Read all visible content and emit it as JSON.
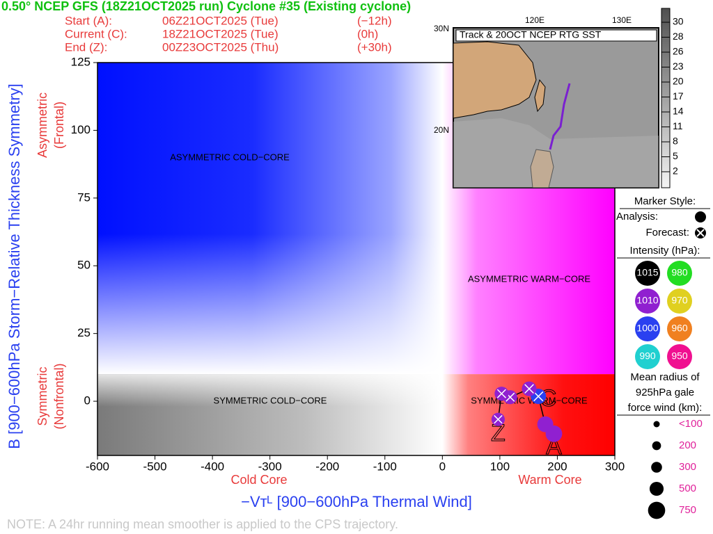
{
  "chart_data": {
    "type": "line",
    "title": "0.50° NCEP GFS (18Z21OCT2025 run) Cyclone #35 (Existing cyclone)",
    "times": [
      [
        "Start (A):",
        "06Z21OCT2025 (Tue)",
        "(−12h)"
      ],
      [
        "Current (C):",
        "18Z21OCT2025 (Tue)",
        "(0h)"
      ],
      [
        "End (Z):",
        "00Z23OCT2025 (Thu)",
        "(+30h)"
      ]
    ],
    "x_label": "−Vᴛᴸ [900−600hPa Thermal Wind]",
    "y_label": "B [900−600hPa Storm−Relative Thickness Symmetry]",
    "x_sublabels": [
      "Cold Core",
      "Warm Core"
    ],
    "y_sublabels": [
      [
        "Asymmetric",
        "(Frontal)"
      ],
      [
        "Symmetric",
        "(Nonfrontal)"
      ]
    ],
    "regions": [
      "ASYMMETRIC COLD−CORE",
      "ASYMMETRIC WARM−CORE",
      "SYMMETRIC COLD−CORE",
      "SYMMETRIC WARM−CORE"
    ],
    "region_split": {
      "x": 0,
      "y": 10
    },
    "xlim": [
      -600,
      300
    ],
    "xticks": [
      -600,
      -500,
      -400,
      -300,
      -200,
      -100,
      0,
      100,
      200,
      300
    ],
    "ylim": [
      -20,
      125
    ],
    "yticks": [
      0,
      25,
      50,
      75,
      100,
      125
    ],
    "x": [
      194,
      179,
      167,
      151,
      118,
      103,
      97
    ],
    "values": [
      -12,
      -8.5,
      1.8,
      4.6,
      1.5,
      2.8,
      -6.7
    ],
    "sizes": [
      700,
      650,
      600,
      550,
      500,
      500,
      450
    ],
    "point_colors": [
      "#9020d0",
      "#9020d0",
      "#2a40f0",
      "#9020d0",
      "#9020d0",
      "#9020d0",
      "#9020d0"
    ],
    "forecast": [
      false,
      false,
      true,
      true,
      true,
      true,
      true
    ],
    "track_letters": [
      "A",
      "C",
      "Z"
    ],
    "note": "NOTE:  A 24hr running mean smoother is applied to the CPS trajectory.",
    "map": {
      "title": "Track & 20OCT NCEP RTG SST",
      "lon_labels": [
        "120E",
        "130E"
      ],
      "lat_labels": [
        "30N",
        "20N"
      ],
      "colorbar_ticks": [
        30,
        28,
        26,
        23,
        20,
        17,
        14,
        11,
        8,
        5,
        2
      ]
    },
    "legend": {
      "marker_title": "Marker Style:",
      "analysis": "Analysis:",
      "forecast": "Forecast:",
      "intensity_title": "Intensity (hPa):",
      "intensity": [
        {
          "label": "1015",
          "color": "#000000"
        },
        {
          "label": "980",
          "color": "#22dd22"
        },
        {
          "label": "1010",
          "color": "#9020d0"
        },
        {
          "label": "970",
          "color": "#e0d020"
        },
        {
          "label": "1000",
          "color": "#2a40f0"
        },
        {
          "label": "960",
          "color": "#f08020"
        },
        {
          "label": "990",
          "color": "#20d0d0"
        },
        {
          "label": "950",
          "color": "#f01090"
        }
      ],
      "radius_title": [
        "Mean radius of",
        "925hPa gale",
        "force wind (km):"
      ],
      "radius": [
        {
          "value": 100,
          "label": "<100"
        },
        200,
        300,
        500,
        750
      ]
    }
  }
}
